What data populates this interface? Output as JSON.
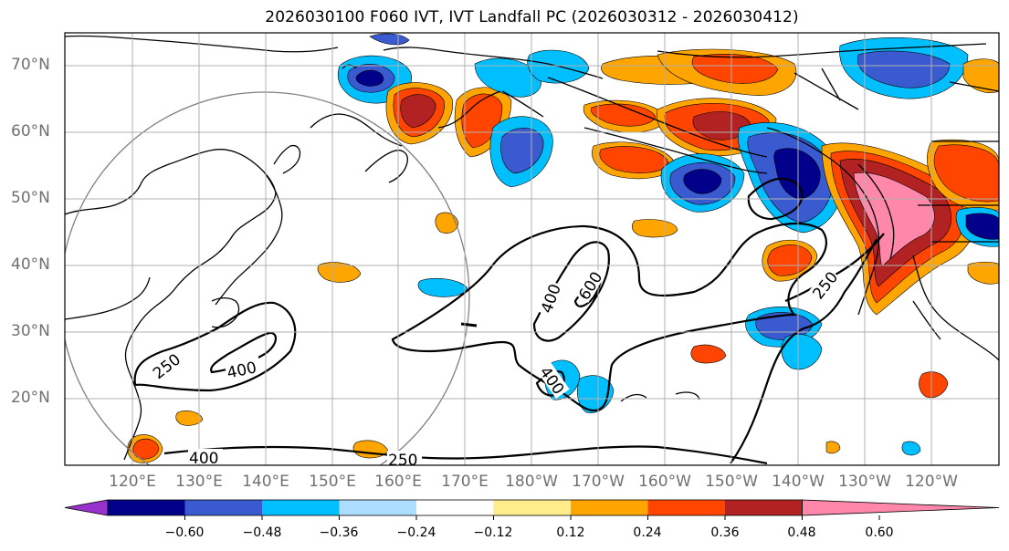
{
  "title": "2026030100 F060 IVT, IVT Landfall PC (2026030312 - 2026030412)",
  "lat_labels": [
    "70°N",
    "60°N",
    "50°N",
    "40°N",
    "30°N",
    "20°N"
  ],
  "lon_labels": [
    "120°E",
    "130°E",
    "140°E",
    "150°E",
    "160°E",
    "170°E",
    "180°W",
    "170°W",
    "160°W",
    "150°W",
    "140°W",
    "130°W",
    "120°W"
  ],
  "contour_labels": [
    "250",
    "400",
    "400",
    "250",
    "400",
    "600",
    "400",
    "250"
  ],
  "colorbar": {
    "ticks": [
      "−0.60",
      "−0.48",
      "−0.36",
      "−0.24",
      "−0.12",
      "0.12",
      "0.24",
      "0.36",
      "0.48",
      "0.60"
    ],
    "colors": [
      "#9932CC",
      "#00008B",
      "#3A5BCF",
      "#00BFFF",
      "#ADDEFF",
      "#FFFFFF",
      "#FFEC8B",
      "#FFA500",
      "#FF4500",
      "#B22222",
      "#FF88AA"
    ]
  },
  "colors": {
    "land_outline": "#000000",
    "grid": "#b0b0b0",
    "ivt_contour": "#000000",
    "range_ring": "#808080"
  }
}
